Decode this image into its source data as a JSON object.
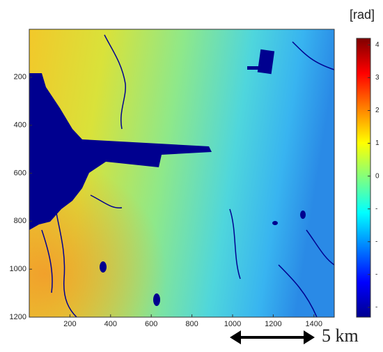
{
  "chart_data": {
    "type": "image",
    "xlim": [
      0,
      1500
    ],
    "xticks": [
      200,
      400,
      600,
      800,
      1000,
      1200,
      1400
    ],
    "ylim": [
      1200,
      0
    ],
    "yticks": [
      200,
      400,
      600,
      800,
      1000,
      1200
    ],
    "colorbar": {
      "label": "[rad]",
      "clim": [
        -4.3,
        4.2
      ],
      "ticks": [
        4,
        3,
        2,
        1,
        0,
        {
          "value": -1,
          "label": "-"
        },
        {
          "value": -2,
          "label": "-"
        },
        {
          "value": -3,
          "label": "-"
        },
        {
          "value": -4,
          "label": "-"
        }
      ]
    },
    "scale_bar": "5 km"
  }
}
